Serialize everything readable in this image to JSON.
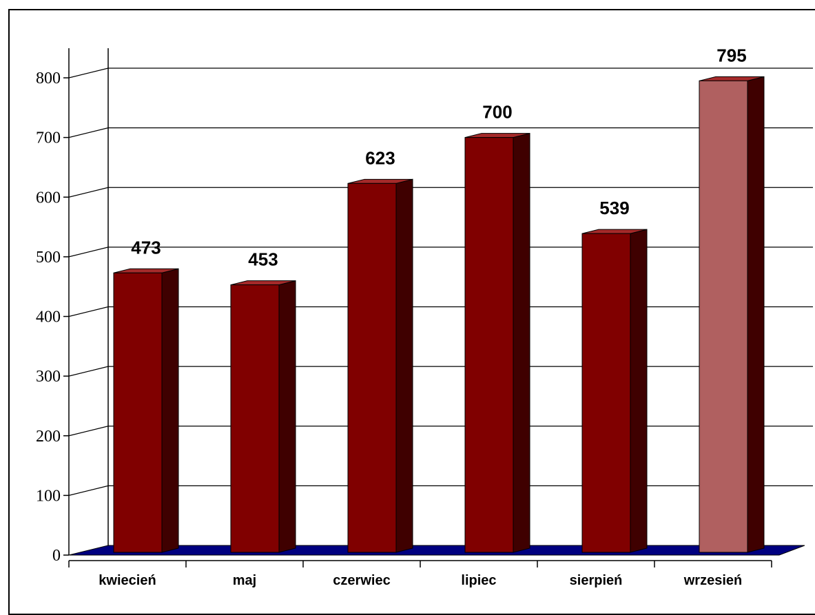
{
  "chart_data": {
    "type": "bar",
    "categories": [
      "kwiecień",
      "maj",
      "czerwiec",
      "lipiec",
      "sierpień",
      "wrzesień"
    ],
    "values": [
      473,
      453,
      623,
      700,
      539,
      795
    ],
    "data_labels": [
      "473",
      "453",
      "623",
      "700",
      "539",
      "795"
    ],
    "title": "",
    "xlabel": "",
    "ylabel": "",
    "ylim": [
      0,
      800
    ],
    "yticks": [
      "0",
      "100",
      "200",
      "300",
      "400",
      "500",
      "600",
      "700",
      "800"
    ],
    "grid": true,
    "legend": "none",
    "style": "3d",
    "colors": {
      "bar_front": "#800000",
      "bar_side": "#3f0000",
      "bar_top": "#a52a2a",
      "highlight_front": "#b06060",
      "floor": "#000080",
      "highlight_index": 5
    }
  }
}
